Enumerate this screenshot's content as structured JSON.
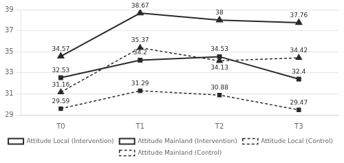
{
  "chart_data": {
    "type": "line",
    "categories": [
      "T0",
      "T1",
      "T2",
      "T3"
    ],
    "series": [
      {
        "name": "Attitude Local (Intervention)",
        "color": "#2a2a2a",
        "marker": "square",
        "line_style": "solid",
        "values": [
          32.53,
          34.2,
          34.53,
          32.4
        ]
      },
      {
        "name": "Attitude Mainland (Intervention)",
        "color": "#2a2a2a",
        "marker": "triangle",
        "line_style": "solid",
        "values": [
          34.57,
          38.67,
          38,
          37.76
        ]
      },
      {
        "name": "Attitude Local (Control)",
        "color": "#2a2a2a",
        "marker": "square",
        "line_style": "dashed",
        "values": [
          29.59,
          31.29,
          30.88,
          29.47
        ]
      },
      {
        "name": "Attitude Mainland (Control)",
        "color": "#2a2a2a",
        "marker": "triangle",
        "line_style": "dashed",
        "values": [
          31.16,
          35.37,
          34.13,
          34.42
        ]
      }
    ],
    "ylim": [
      29,
      39
    ],
    "yticks": [
      29,
      31,
      33,
      35,
      37,
      39
    ],
    "grid": true,
    "legend": "bottom",
    "data_labels": true
  }
}
